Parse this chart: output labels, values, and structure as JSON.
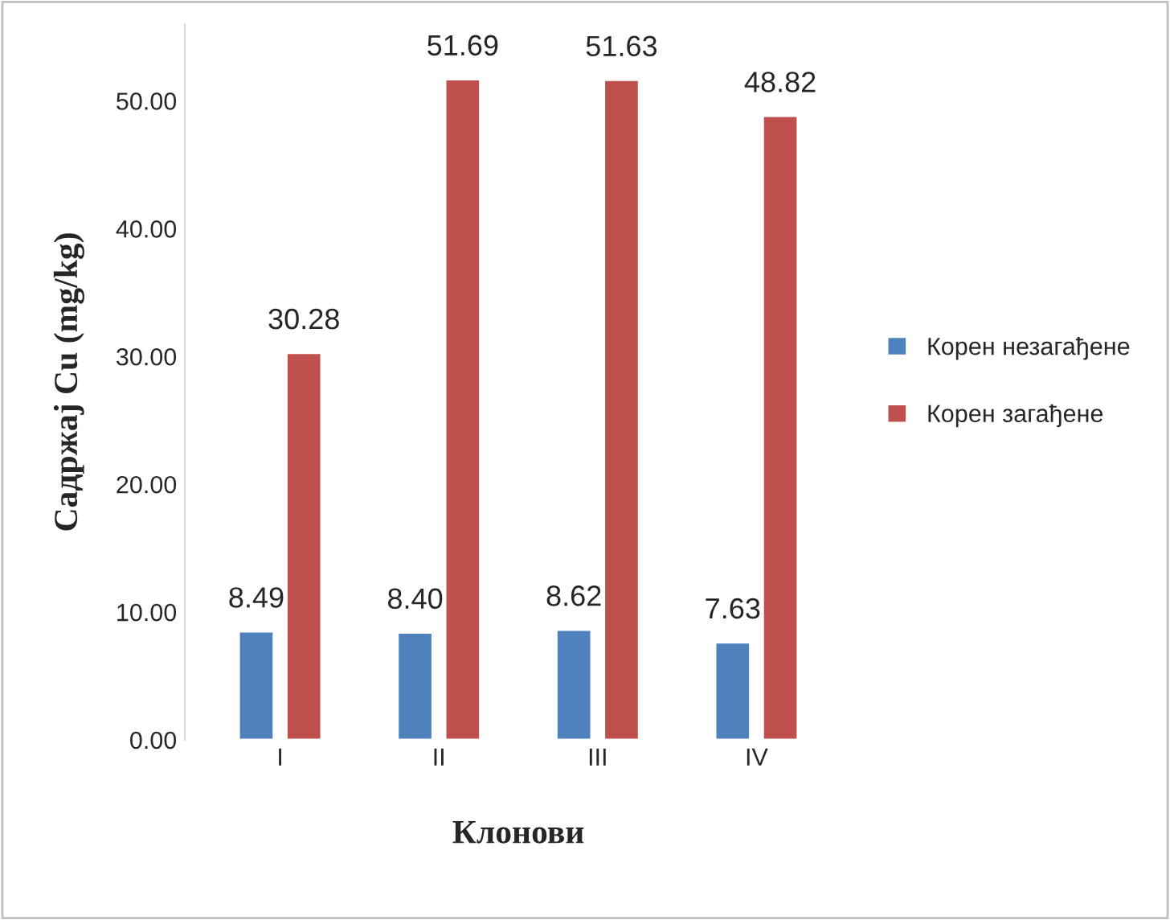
{
  "chart_data": {
    "type": "bar",
    "xlabel": "Клонови",
    "ylabel": "Садржај Cu (mg/kg)",
    "categories": [
      "I",
      "II",
      "III",
      "IV"
    ],
    "series": [
      {
        "name": "Корен незагађене",
        "color": "#4f81bd",
        "values": [
          8.49,
          8.4,
          8.62,
          7.63
        ],
        "value_labels": [
          "8.49",
          "8.40",
          "8.62",
          "7.63"
        ]
      },
      {
        "name": "Корен загађене",
        "color": "#c0504d",
        "values": [
          30.28,
          51.69,
          51.63,
          48.82
        ],
        "value_labels": [
          "30.28",
          "51.69",
          "51.63",
          "48.82"
        ]
      }
    ],
    "ylim": [
      0,
      56
    ],
    "yticks": [
      {
        "value": 0,
        "label": "0.00"
      },
      {
        "value": 10,
        "label": "10.00"
      },
      {
        "value": 20,
        "label": "20.00"
      },
      {
        "value": 30,
        "label": "30.00"
      },
      {
        "value": 40,
        "label": "40.00"
      },
      {
        "value": 50,
        "label": "50.00"
      }
    ],
    "grid": false,
    "legend": "right"
  }
}
